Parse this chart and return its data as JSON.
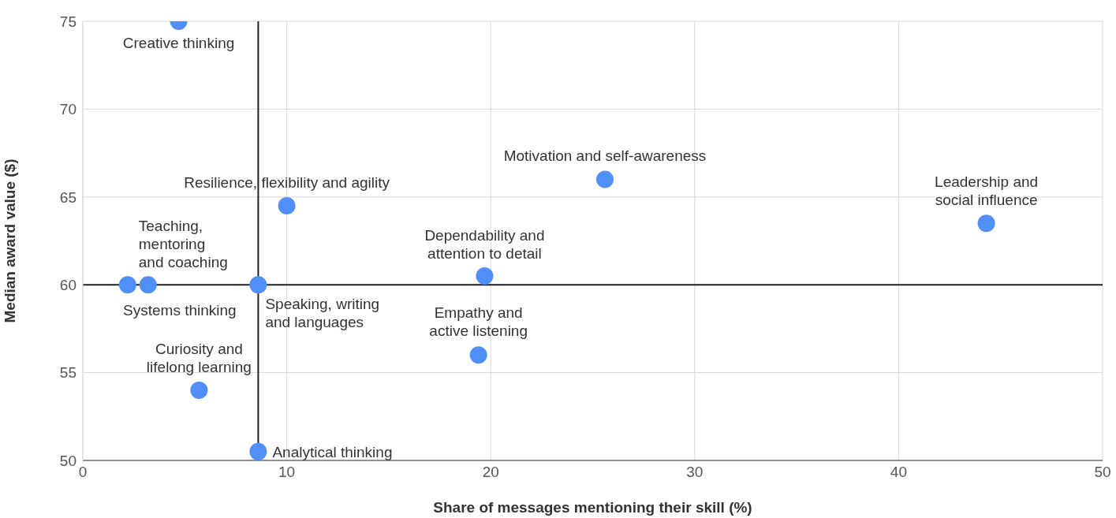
{
  "chart_data": {
    "type": "scatter",
    "xlabel": "Share of messages mentioning their skill (%)",
    "ylabel": "Median award value ($)",
    "x": [
      4.7,
      3.2,
      2.2,
      8.6,
      10.0,
      5.7,
      8.6,
      19.7,
      19.4,
      25.6,
      44.3
    ],
    "values": [
      75,
      60,
      60,
      60,
      64.5,
      54,
      50.5,
      60.5,
      56,
      66,
      63.5
    ],
    "color": "#4f8ff7",
    "marker": "circle",
    "xlim": [
      0,
      50
    ],
    "xticks": [
      0,
      10,
      20,
      30,
      40,
      50
    ],
    "ylim": [
      50,
      75
    ],
    "yticks": [
      50,
      55,
      60,
      65,
      70,
      75
    ],
    "grid": true,
    "ref_lines": [
      {
        "axis": "x",
        "value": 8.6,
        "color": "#222222"
      },
      {
        "axis": "y",
        "value": 60,
        "color": "#222222"
      }
    ],
    "annotations": [
      {
        "text": "Creative thinking",
        "x": 4.7,
        "y": 75
      },
      {
        "text": "Teaching,\nmentoring\nand coaching",
        "x": 3.2,
        "y": 60
      },
      {
        "text": "Systems thinking",
        "x": 2.2,
        "y": 60
      },
      {
        "text": "Speaking, writing\nand languages",
        "x": 8.6,
        "y": 60
      },
      {
        "text": "Resilience, flexibility and agility",
        "x": 10.0,
        "y": 64.5
      },
      {
        "text": "Curiosity and\nlifelong learning",
        "x": 5.7,
        "y": 54
      },
      {
        "text": "Analytical thinking",
        "x": 8.6,
        "y": 50.5
      },
      {
        "text": "Dependability and\nattention to detail",
        "x": 19.7,
        "y": 60.5
      },
      {
        "text": "Empathy and\nactive listening",
        "x": 19.4,
        "y": 56
      },
      {
        "text": "Motivation and self-awareness",
        "x": 25.6,
        "y": 66
      },
      {
        "text": "Leadership and\nsocial influence",
        "x": 44.3,
        "y": 63.5
      }
    ]
  }
}
